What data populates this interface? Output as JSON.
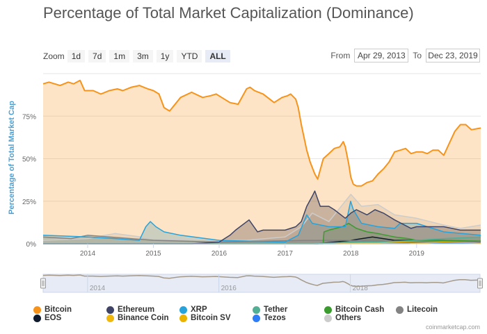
{
  "chart_data": {
    "type": "area",
    "title": "Percentage of Total Market Capitalization (Dominance)",
    "ylabel": "Percentage of Total Market Cap",
    "xlim": [
      "2013-04-29",
      "2019-12-23"
    ],
    "ylim": [
      0,
      100
    ],
    "y_ticks": [
      "0%",
      "25%",
      "50%",
      "75%"
    ],
    "x_ticks": [
      "2014",
      "2015",
      "2016",
      "2017",
      "2018",
      "2019"
    ],
    "navigator_ticks": [
      "2014",
      "2016",
      "2018"
    ],
    "series": [
      {
        "name": "Bitcoin",
        "color": "#f7931a",
        "fill": "rgba(247,147,26,0.25)",
        "x": [
          "2013-04-29",
          "2013-06-01",
          "2013-08-01",
          "2013-09-15",
          "2013-10-15",
          "2013-11-20",
          "2013-12-15",
          "2014-02-01",
          "2014-03-15",
          "2014-05-01",
          "2014-06-15",
          "2014-07-15",
          "2014-09-01",
          "2014-10-15",
          "2014-12-01",
          "2015-01-01",
          "2015-02-01",
          "2015-03-01",
          "2015-04-01",
          "2015-06-01",
          "2015-08-01",
          "2015-10-01",
          "2015-11-15",
          "2015-12-15",
          "2016-01-15",
          "2016-03-01",
          "2016-04-15",
          "2016-06-01",
          "2016-06-20",
          "2016-07-15",
          "2016-09-01",
          "2016-11-01",
          "2016-12-15",
          "2017-01-15",
          "2017-02-01",
          "2017-03-01",
          "2017-03-15",
          "2017-04-01",
          "2017-05-01",
          "2017-05-20",
          "2017-06-15",
          "2017-07-01",
          "2017-08-01",
          "2017-09-01",
          "2017-10-01",
          "2017-11-01",
          "2017-11-20",
          "2017-12-01",
          "2017-12-20",
          "2018-01-01",
          "2018-01-15",
          "2018-02-01",
          "2018-03-01",
          "2018-04-01",
          "2018-05-01",
          "2018-06-01",
          "2018-07-01",
          "2018-08-01",
          "2018-09-01",
          "2018-10-01",
          "2018-11-01",
          "2018-12-01",
          "2019-01-01",
          "2019-02-01",
          "2019-03-01",
          "2019-04-01",
          "2019-05-01",
          "2019-06-01",
          "2019-07-01",
          "2019-08-01",
          "2019-09-01",
          "2019-10-01",
          "2019-11-01",
          "2019-12-23"
        ],
        "values": [
          94,
          95,
          93,
          95,
          94,
          96,
          90,
          90,
          88,
          90,
          91,
          90,
          92,
          93,
          91,
          90,
          88,
          80,
          78,
          86,
          89,
          86,
          87,
          88,
          86,
          83,
          82,
          91,
          92,
          90,
          88,
          83,
          86,
          87,
          88,
          85,
          80,
          70,
          55,
          48,
          41,
          38,
          50,
          53,
          56,
          57,
          60,
          57,
          47,
          39,
          35,
          34,
          34,
          36,
          37,
          41,
          44,
          48,
          54,
          55,
          56,
          53,
          54,
          54,
          53,
          55,
          55,
          52,
          59,
          66,
          70,
          70,
          67,
          68
        ]
      },
      {
        "name": "Ethereum",
        "color": "#3d4468",
        "fill": "rgba(61,68,104,0.35)",
        "x": [
          "2013-04-29",
          "2015-08-01",
          "2016-01-01",
          "2016-03-01",
          "2016-04-01",
          "2016-06-15",
          "2016-08-01",
          "2016-09-01",
          "2017-01-01",
          "2017-03-01",
          "2017-04-01",
          "2017-05-01",
          "2017-06-01",
          "2017-06-15",
          "2017-07-15",
          "2017-09-01",
          "2017-10-01",
          "2017-12-01",
          "2018-01-01",
          "2018-02-01",
          "2018-04-01",
          "2018-05-15",
          "2018-07-01",
          "2018-09-01",
          "2018-12-01",
          "2019-01-01",
          "2019-06-01",
          "2019-09-01",
          "2019-12-23"
        ],
        "values": [
          0,
          0,
          1,
          5,
          8,
          14,
          7,
          8,
          8,
          10,
          13,
          22,
          28,
          31,
          22,
          22,
          20,
          15,
          18,
          20,
          17,
          20,
          18,
          14,
          9,
          10,
          10,
          8,
          8
        ]
      },
      {
        "name": "XRP",
        "color": "#27a2db",
        "fill": "rgba(39,162,219,0.3)",
        "x": [
          "2013-04-29",
          "2014-01-01",
          "2014-06-01",
          "2014-10-15",
          "2014-11-20",
          "2014-12-15",
          "2015-01-15",
          "2015-03-01",
          "2015-06-01",
          "2016-01-01",
          "2017-01-01",
          "2017-03-15",
          "2017-05-01",
          "2017-06-01",
          "2017-09-01",
          "2017-12-01",
          "2017-12-31",
          "2018-01-15",
          "2018-03-01",
          "2018-06-01",
          "2018-09-01",
          "2018-10-01",
          "2019-01-01",
          "2019-06-01",
          "2019-12-23"
        ],
        "values": [
          5,
          4,
          3,
          2,
          10,
          13,
          10,
          7,
          5,
          2,
          1,
          5,
          17,
          12,
          10,
          10,
          25,
          20,
          12,
          10,
          9,
          12,
          12,
          7,
          5
        ]
      },
      {
        "name": "Tether",
        "color": "#50af95",
        "fill": "rgba(80,175,149,0.25)",
        "x": [
          "2013-04-29",
          "2017-06-01",
          "2018-01-01",
          "2018-06-01",
          "2019-01-01",
          "2019-06-01",
          "2019-12-23"
        ],
        "values": [
          0,
          0,
          1,
          1,
          2,
          3,
          4
        ]
      },
      {
        "name": "Bitcoin Cash",
        "color": "#3b9b2f",
        "fill": "rgba(59,155,47,0.25)",
        "x": [
          "2013-04-29",
          "2017-07-31",
          "2017-08-05",
          "2017-09-01",
          "2017-11-13",
          "2017-12-20",
          "2018-02-01",
          "2018-04-01",
          "2018-06-01",
          "2018-09-01",
          "2018-11-15",
          "2019-01-01",
          "2019-06-01",
          "2019-12-23"
        ],
        "values": [
          0,
          0,
          7,
          8,
          10,
          12,
          9,
          7,
          6,
          4,
          3,
          2,
          2,
          1.5
        ]
      },
      {
        "name": "Litecoin",
        "color": "#838383",
        "fill": "rgba(131,131,131,0.25)",
        "x": [
          "2013-04-29",
          "2013-10-01",
          "2014-01-01",
          "2015-01-01",
          "2016-01-01",
          "2017-05-01",
          "2017-12-01",
          "2018-06-01",
          "2019-06-01",
          "2019-12-23"
        ],
        "values": [
          4,
          3,
          5,
          2,
          1,
          2,
          2,
          1.5,
          1.5,
          1
        ]
      },
      {
        "name": "EOS",
        "color": "#0f1b2d",
        "fill": "rgba(15,27,45,0.2)",
        "x": [
          "2013-04-29",
          "2017-07-01",
          "2018-01-01",
          "2018-05-01",
          "2018-09-01",
          "2019-06-01",
          "2019-12-23"
        ],
        "values": [
          0,
          0,
          2,
          4,
          2,
          2,
          1
        ]
      },
      {
        "name": "Binance Coin",
        "color": "#f0b90b",
        "fill": "rgba(240,185,11,0.2)",
        "x": [
          "2013-04-29",
          "2017-08-01",
          "2018-06-01",
          "2019-06-01",
          "2019-12-23"
        ],
        "values": [
          0,
          0,
          0.5,
          2,
          1
        ]
      },
      {
        "name": "Bitcoin SV",
        "color": "#eab300",
        "fill": "rgba(234,179,0,0.2)",
        "x": [
          "2013-04-29",
          "2018-11-15",
          "2019-06-01",
          "2019-12-23"
        ],
        "values": [
          0,
          0,
          1,
          0.5
        ]
      },
      {
        "name": "Tezos",
        "color": "#2c7df7",
        "fill": "rgba(44,125,247,0.2)",
        "x": [
          "2013-04-29",
          "2017-10-01",
          "2018-06-01",
          "2019-12-23"
        ],
        "values": [
          0,
          0,
          0.5,
          0.5
        ]
      },
      {
        "name": "Others",
        "color": "#cccccc",
        "fill": "rgba(204,204,204,0.35)",
        "x": [
          "2013-04-29",
          "2014-01-01",
          "2014-06-01",
          "2015-01-01",
          "2016-01-01",
          "2016-06-01",
          "2017-01-01",
          "2017-04-01",
          "2017-06-01",
          "2017-09-01",
          "2018-01-01",
          "2018-03-01",
          "2018-06-01",
          "2018-09-01",
          "2019-01-01",
          "2019-06-01",
          "2019-09-01",
          "2019-12-23"
        ],
        "values": [
          2,
          3,
          6,
          3,
          2,
          2,
          4,
          10,
          18,
          13,
          29,
          22,
          23,
          17,
          15,
          11,
          9,
          11
        ]
      }
    ]
  },
  "controls": {
    "zoom_label": "Zoom",
    "zoom_options": [
      "1d",
      "7d",
      "1m",
      "3m",
      "1y",
      "YTD",
      "ALL"
    ],
    "zoom_selected": "ALL",
    "from_label": "From",
    "from_value": "Apr 29, 2013",
    "to_label": "To",
    "to_value": "Dec 23, 2019"
  },
  "credit": "coinmarketcap.com"
}
